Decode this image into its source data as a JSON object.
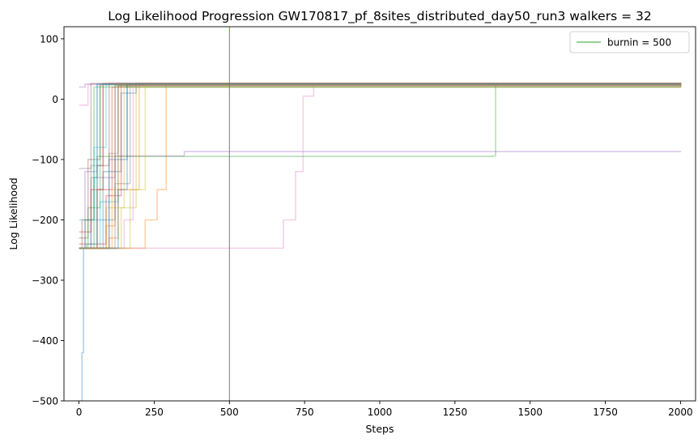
{
  "chart_data": {
    "type": "line",
    "title": "Log Likelihood Progression GW170817_pf_8sites_distributed_day50_run3 walkers = 32",
    "xlabel": "Steps",
    "ylabel": "Log Likelihood",
    "xlim": [
      -50,
      2050
    ],
    "ylim": [
      -500,
      120
    ],
    "xticks": [
      0,
      250,
      500,
      750,
      1000,
      1250,
      1500,
      1750,
      2000
    ],
    "yticks": [
      -500,
      -400,
      -300,
      -200,
      -100,
      0,
      100
    ],
    "xtick_labels": [
      "0",
      "250",
      "500",
      "750",
      "1000",
      "1250",
      "1500",
      "1750",
      "2000"
    ],
    "ytick_labels": [
      "−500",
      "−400",
      "−300",
      "−200",
      "−100",
      "0",
      "100"
    ],
    "grid": false,
    "legend_position": "top-right",
    "vline": {
      "x": 500,
      "label": "burnin = 500",
      "color": "#2ca02c"
    },
    "walker_colors": [
      "#1f77b4",
      "#ff7f0e",
      "#2ca02c",
      "#d62728",
      "#9467bd",
      "#8c564b",
      "#e377c2",
      "#7f7f7f",
      "#bcbd22",
      "#17becf"
    ],
    "series": [
      {
        "color": "#1f77b4",
        "points": [
          [
            0,
            -247
          ],
          [
            40,
            -200
          ],
          [
            80,
            -120
          ],
          [
            140,
            10
          ],
          [
            190,
            26
          ],
          [
            2000,
            26
          ]
        ]
      },
      {
        "color": "#ff7f0e",
        "points": [
          [
            0,
            -247
          ],
          [
            180,
            -247
          ],
          [
            220,
            -200
          ],
          [
            260,
            -150
          ],
          [
            290,
            24
          ],
          [
            2000,
            26
          ]
        ]
      },
      {
        "color": "#2ca02c",
        "points": [
          [
            0,
            -247
          ],
          [
            50,
            -130
          ],
          [
            60,
            -95
          ],
          [
            1375,
            -94
          ],
          [
            1385,
            25
          ],
          [
            2000,
            26
          ]
        ]
      },
      {
        "color": "#d62728",
        "points": [
          [
            0,
            -247
          ],
          [
            60,
            -150
          ],
          [
            110,
            20
          ],
          [
            2000,
            27
          ]
        ]
      },
      {
        "color": "#9467bd",
        "points": [
          [
            0,
            -247
          ],
          [
            40,
            -130
          ],
          [
            120,
            -94
          ],
          [
            350,
            -87
          ],
          [
            2000,
            -86
          ]
        ]
      },
      {
        "color": "#8c564b",
        "points": [
          [
            0,
            -230
          ],
          [
            30,
            -100
          ],
          [
            70,
            25
          ],
          [
            2000,
            27
          ]
        ]
      },
      {
        "color": "#e377c2",
        "points": [
          [
            0,
            -247
          ],
          [
            630,
            -247
          ],
          [
            680,
            -200
          ],
          [
            720,
            -120
          ],
          [
            745,
            5
          ],
          [
            780,
            25
          ],
          [
            2000,
            25
          ]
        ]
      },
      {
        "color": "#7f7f7f",
        "points": [
          [
            0,
            -115
          ],
          [
            40,
            -110
          ],
          [
            80,
            25
          ],
          [
            2000,
            27
          ]
        ]
      },
      {
        "color": "#bcbd22",
        "points": [
          [
            0,
            -247
          ],
          [
            90,
            -180
          ],
          [
            150,
            20
          ],
          [
            2000,
            26
          ]
        ]
      },
      {
        "color": "#17becf",
        "points": [
          [
            0,
            -247
          ],
          [
            70,
            -170
          ],
          [
            130,
            22
          ],
          [
            2000,
            26
          ]
        ]
      },
      {
        "color": "#1f77b4",
        "points": [
          [
            5,
            -500
          ],
          [
            10,
            -420
          ],
          [
            15,
            -247
          ],
          [
            100,
            -100
          ],
          [
            160,
            25
          ],
          [
            2000,
            26
          ]
        ]
      },
      {
        "color": "#ff7f0e",
        "points": [
          [
            0,
            -247
          ],
          [
            110,
            -150
          ],
          [
            200,
            24
          ],
          [
            2000,
            26
          ]
        ]
      },
      {
        "color": "#2ca02c",
        "points": [
          [
            0,
            -247
          ],
          [
            20,
            -200
          ],
          [
            50,
            20
          ],
          [
            2000,
            27
          ]
        ]
      },
      {
        "color": "#d62728",
        "points": [
          [
            0,
            -240
          ],
          [
            90,
            -160
          ],
          [
            140,
            24
          ],
          [
            2000,
            26
          ]
        ]
      },
      {
        "color": "#9467bd",
        "points": [
          [
            0,
            20
          ],
          [
            20,
            25
          ],
          [
            2000,
            26
          ]
        ]
      },
      {
        "color": "#8c564b",
        "points": [
          [
            0,
            -247
          ],
          [
            60,
            -110
          ],
          [
            100,
            26
          ],
          [
            2000,
            27
          ]
        ]
      },
      {
        "color": "#e377c2",
        "points": [
          [
            0,
            -10
          ],
          [
            30,
            24
          ],
          [
            2000,
            26
          ]
        ]
      },
      {
        "color": "#7f7f7f",
        "points": [
          [
            0,
            -247
          ],
          [
            120,
            -140
          ],
          [
            170,
            25
          ],
          [
            2000,
            26
          ]
        ]
      },
      {
        "color": "#bcbd22",
        "points": [
          [
            0,
            -247
          ],
          [
            140,
            -180
          ],
          [
            190,
            24
          ],
          [
            2000,
            25
          ]
        ]
      },
      {
        "color": "#17becf",
        "points": [
          [
            0,
            -200
          ],
          [
            50,
            -80
          ],
          [
            90,
            24
          ],
          [
            2000,
            26
          ]
        ]
      },
      {
        "color": "#1f77b4",
        "points": [
          [
            0,
            -247
          ],
          [
            80,
            -200
          ],
          [
            120,
            23
          ],
          [
            2000,
            25
          ]
        ]
      },
      {
        "color": "#ff7f0e",
        "points": [
          [
            0,
            -247
          ],
          [
            100,
            -230
          ],
          [
            130,
            22
          ],
          [
            2000,
            26
          ]
        ]
      },
      {
        "color": "#2ca02c",
        "points": [
          [
            0,
            -247
          ],
          [
            30,
            -180
          ],
          [
            70,
            24
          ],
          [
            2000,
            27
          ]
        ]
      },
      {
        "color": "#d62728",
        "points": [
          [
            0,
            -220
          ],
          [
            40,
            -150
          ],
          [
            80,
            26
          ],
          [
            2000,
            27
          ]
        ]
      },
      {
        "color": "#9467bd",
        "points": [
          [
            0,
            -247
          ],
          [
            20,
            -120
          ],
          [
            60,
            25
          ],
          [
            2000,
            26
          ]
        ]
      },
      {
        "color": "#8c564b",
        "points": [
          [
            0,
            -247
          ],
          [
            10,
            -200
          ],
          [
            40,
            26
          ],
          [
            2000,
            27
          ]
        ]
      },
      {
        "color": "#e377c2",
        "points": [
          [
            0,
            -247
          ],
          [
            150,
            -200
          ],
          [
            180,
            23
          ],
          [
            2000,
            25
          ]
        ]
      },
      {
        "color": "#7f7f7f",
        "points": [
          [
            0,
            -247
          ],
          [
            100,
            -90
          ],
          [
            130,
            26
          ],
          [
            2000,
            26
          ]
        ]
      },
      {
        "color": "#bcbd22",
        "points": [
          [
            0,
            -247
          ],
          [
            170,
            -150
          ],
          [
            220,
            24
          ],
          [
            2000,
            26
          ]
        ]
      },
      {
        "color": "#17becf",
        "points": [
          [
            0,
            -247
          ],
          [
            25,
            -240
          ],
          [
            60,
            25
          ],
          [
            2000,
            26
          ]
        ]
      },
      {
        "color": "#1f77b4",
        "points": [
          [
            0,
            -247
          ],
          [
            130,
            -150
          ],
          [
            160,
            24
          ],
          [
            2000,
            26
          ]
        ]
      },
      {
        "color": "#ff7f0e",
        "points": [
          [
            0,
            -247
          ],
          [
            90,
            -210
          ],
          [
            120,
            24
          ],
          [
            2000,
            27
          ]
        ]
      }
    ]
  }
}
